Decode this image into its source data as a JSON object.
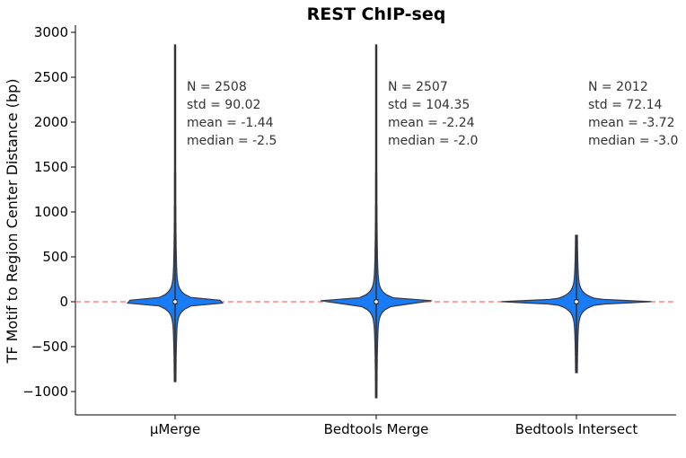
{
  "chart_data": {
    "type": "violin",
    "title": "REST ChIP-seq",
    "xlabel": "",
    "ylabel": "TF Motif to Region Center Distance (bp)",
    "ylim": [
      -1250,
      3050
    ],
    "yticks": [
      -1000,
      -500,
      0,
      500,
      1000,
      1500,
      2000,
      2500,
      3000
    ],
    "ytick_labels": [
      "−1000",
      "−500",
      "0",
      "500",
      "1000",
      "1500",
      "2000",
      "2500",
      "3000"
    ],
    "categories": [
      "μMerge",
      "Bedtools Merge",
      "Bedtools Intersect"
    ],
    "violins": [
      {
        "category": "μMerge",
        "min": -890,
        "max": 2860,
        "n": "N = 2508",
        "std": "std = 90.02",
        "mean": "mean = -1.44",
        "median": "median = -2.5"
      },
      {
        "category": "Bedtools Merge",
        "min": -1070,
        "max": 2860,
        "n": "N = 2507",
        "std": "std = 104.35",
        "mean": "mean = -2.24",
        "median": "median = -2.0"
      },
      {
        "category": "Bedtools Intersect",
        "min": -790,
        "max": 740,
        "n": "N = 2012",
        "std": "std = 72.14",
        "mean": "mean = -3.72",
        "median": "median = -3.0"
      }
    ],
    "reference_line": {
      "y": 0,
      "style": "dashed",
      "color": "#ff6b6b"
    },
    "colors": {
      "violin_fill": "#1a7cf5",
      "violin_edge": "#3a3a4a",
      "whisker": "#333333"
    },
    "grid": false
  }
}
